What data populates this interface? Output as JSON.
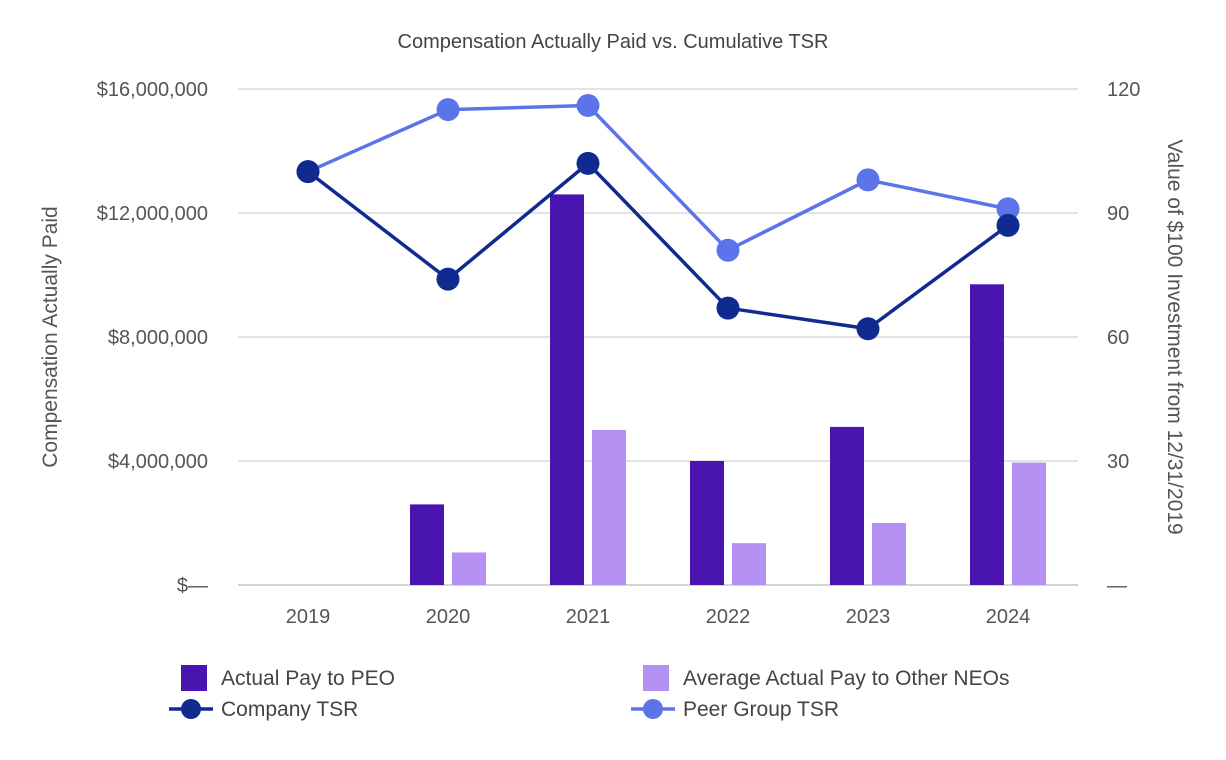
{
  "chart_data": {
    "type": "bar",
    "title": "Compensation Actually Paid vs. Cumulative TSR",
    "categories": [
      "2019",
      "2020",
      "2021",
      "2022",
      "2023",
      "2024"
    ],
    "ylabel_left": "Compensation Actually Paid",
    "ylabel_right": "Value of $100 Investment from 12/31/2019",
    "ylim_left": [
      0,
      16000000
    ],
    "ylim_right": [
      0,
      120
    ],
    "left_ticks": [
      {
        "value": 0,
        "label": "$—"
      },
      {
        "value": 4000000,
        "label": "$4,000,000"
      },
      {
        "value": 8000000,
        "label": "$8,000,000"
      },
      {
        "value": 12000000,
        "label": "$12,000,000"
      },
      {
        "value": 16000000,
        "label": "$16,000,000"
      }
    ],
    "right_ticks": [
      {
        "value": 0,
        "label": "—"
      },
      {
        "value": 30,
        "label": "30"
      },
      {
        "value": 60,
        "label": "60"
      },
      {
        "value": 90,
        "label": "90"
      },
      {
        "value": 120,
        "label": "120"
      }
    ],
    "grid": true,
    "legend_position": "bottom",
    "bar_series": [
      {
        "name": "Actual Pay to PEO",
        "color": "#4a14b0",
        "values": [
          0,
          2600000,
          12600000,
          4000000,
          5100000,
          9700000
        ]
      },
      {
        "name": "Average Actual Pay to Other NEOs",
        "color": "#b491f3",
        "values": [
          0,
          1050000,
          5000000,
          1350000,
          2000000,
          3950000
        ]
      }
    ],
    "line_series": [
      {
        "name": "Company TSR",
        "color": "#102a8f",
        "values": [
          100,
          74,
          102,
          67,
          62,
          87
        ]
      },
      {
        "name": "Peer Group TSR",
        "color": "#5b74ea",
        "values": [
          100,
          115,
          116,
          81,
          98,
          91
        ]
      }
    ]
  }
}
